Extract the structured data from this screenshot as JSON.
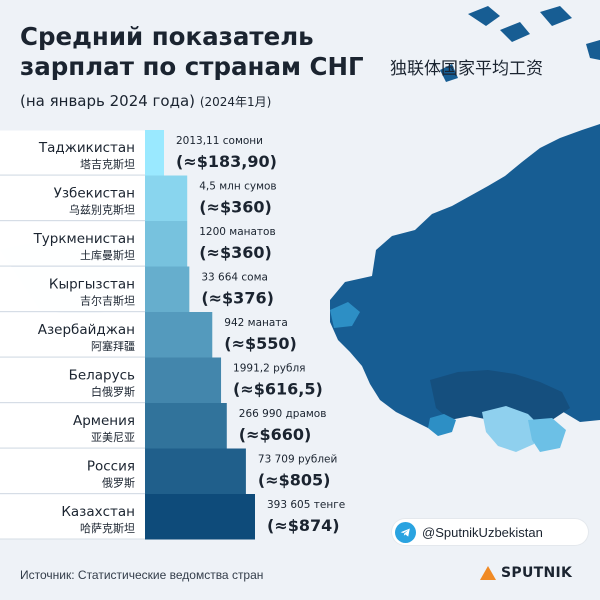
{
  "header": {
    "title_line1": "Средний показатель",
    "title_line2": "зарплат по странам СНГ",
    "title_zh": "独联体国家平均工资",
    "subtitle": "(на январь 2024 года)",
    "subtitle_zh": "(2024年1月)"
  },
  "colors": {
    "bar_light": "#9ae9ff",
    "bar_dark": "#0e4b7a",
    "map_main": "#175d93",
    "map_light": "#8fd0ee",
    "map_mid": "#2d8fc5"
  },
  "chart_data": {
    "type": "bar",
    "orientation": "horizontal",
    "title": "Средний показатель зарплат по странам СНГ",
    "unit": "USD",
    "categories": [
      "Таджикистан",
      "Узбекистан",
      "Туркменистан",
      "Кыргызстан",
      "Азербайджан",
      "Беларусь",
      "Армения",
      "Россия",
      "Казахстан"
    ],
    "categories_zh": [
      "塔吉克斯坦",
      "乌兹别克斯坦",
      "土库曼斯坦",
      "吉尔吉斯坦",
      "阿塞拜疆",
      "白俄罗斯",
      "亚美尼亚",
      "俄罗斯",
      "哈萨克斯坦"
    ],
    "local_amounts": [
      "2013,11 сомони",
      "4,5 млн сумов",
      "1200 манатов",
      "33 664 сома",
      "942 маната",
      "1991,2 рубля",
      "266 990 драмов",
      "73 709 рублей",
      "393 605 тенге"
    ],
    "value_labels": [
      "(≈$183,90)",
      "(≈$360)",
      "(≈$360)",
      "(≈$376)",
      "(≈$550)",
      "(≈$616,5)",
      "(≈$660)",
      "(≈$805)",
      "(≈$874)"
    ],
    "values": [
      183.9,
      360,
      360,
      376,
      550,
      616.5,
      660,
      805,
      874
    ]
  },
  "footer": {
    "source": "Источник: Статистические ведомства стран",
    "social_handle": "@SputnikUzbekistan",
    "brand": "SPUTNIK"
  }
}
